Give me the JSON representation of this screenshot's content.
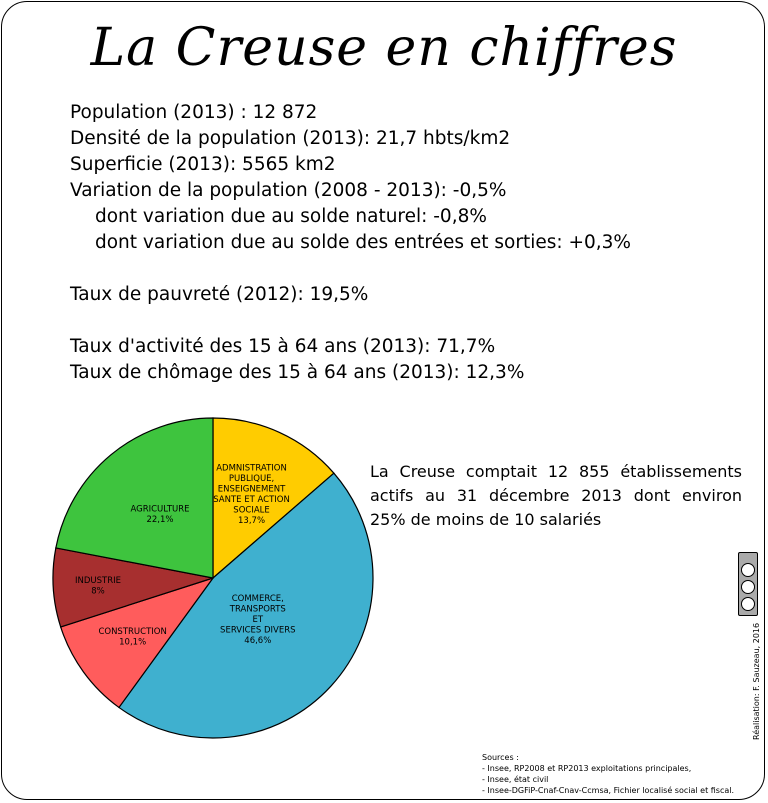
{
  "title": "La Creuse en chiffres",
  "stats": [
    "Population (2013) : 12 872",
    "Densité de la population (2013): 21,7 hbts/km2",
    "Superficie (2013): 5565 km2",
    "Variation de la population (2008 - 2013): -0,5%",
    "dont variation due au solde naturel: -0,8%",
    "dont variation due au solde des entrées et sorties: +0,3%",
    "Taux de pauvreté (2012): 19,5%",
    "Taux d'activité des 15 à 64 ans (2013): 71,7%",
    "Taux de chômage des 15 à 64 ans (2013): 12,3%"
  ],
  "side_text": "La Creuse comptait 12 855 établissements actifs au 31 décembre 2013 dont environ 25% de moins de 10 salariés",
  "sources": {
    "heading": "Sources :",
    "items": [
      "- Insee, RP2008 et RP2013 exploitations principales,",
      "- Insee, état civil",
      "- Insee-DGFiP-Cnaf-Cnav-Ccmsa, Fichier localisé social et fiscal."
    ]
  },
  "credit": "Réalisation: F. Sauzeau, 2016",
  "colors": {
    "admin": "#ffcc00",
    "commerce": "#3fb0cf",
    "construction": "#ff5c5c",
    "industrie": "#a72f2f",
    "agriculture": "#3ec43e"
  },
  "chart_data": {
    "type": "pie",
    "start_angle_deg": 0,
    "direction": "clockwise",
    "slices": [
      {
        "key": "admin",
        "label_lines": [
          "ADMNISTRATION",
          "PUBLIQUE,",
          "ENSEIGNEMENT",
          "SANTE ET ACTION",
          "SOCIALE"
        ],
        "value_label": "13,7%",
        "value": 13.7
      },
      {
        "key": "commerce",
        "label_lines": [
          "COMMERCE,",
          "TRANSPORTS",
          "ET",
          "SERVICES DIVERS"
        ],
        "value_label": "46,6%",
        "value": 46.6
      },
      {
        "key": "construction",
        "label_lines": [
          "CONSTRUCTION"
        ],
        "value_label": "10,1%",
        "value": 10.1
      },
      {
        "key": "industrie",
        "label_lines": [
          "INDUSTRIE"
        ],
        "value_label": "8%",
        "value": 8
      },
      {
        "key": "agriculture",
        "label_lines": [
          "AGRICULTURE"
        ],
        "value_label": "22,1%",
        "value": 22.1
      }
    ]
  }
}
